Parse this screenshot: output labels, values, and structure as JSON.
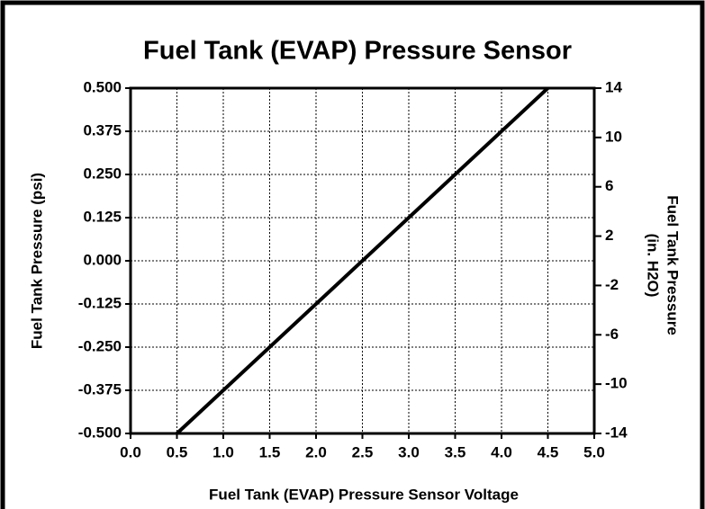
{
  "chart_data": {
    "type": "line",
    "title": "Fuel Tank (EVAP) Pressure Sensor",
    "xlabel": "Fuel Tank (EVAP) Pressure Sensor Voltage",
    "ylabel": "Fuel Tank Pressure (psi)",
    "y2label": [
      "Fuel Tank Pressure",
      "(in. H2O)"
    ],
    "series": [
      {
        "color": "#000000",
        "x": [
          0.5,
          4.5
        ],
        "values": [
          -0.5,
          0.5
        ]
      }
    ],
    "xlim": [
      0,
      5
    ],
    "xticks": [
      {
        "value": 0,
        "label": "0.0"
      },
      0.5,
      {
        "value": 1,
        "label": "1.0"
      },
      1.5,
      {
        "value": 2,
        "label": "2.0"
      },
      2.5,
      {
        "value": 3,
        "label": "3.0"
      },
      3.5,
      {
        "value": 4,
        "label": "4.0"
      },
      4.5,
      {
        "value": 5,
        "label": "5.0"
      }
    ],
    "ylim": [
      -0.5,
      0.5
    ],
    "yticks": [
      {
        "value": 0.5,
        "label": "0.500"
      },
      0.375,
      {
        "value": 0.25,
        "label": "0.250"
      },
      0.125,
      {
        "value": 0,
        "label": "0.000"
      },
      -0.125,
      {
        "value": -0.25,
        "label": "-0.250"
      },
      -0.375,
      {
        "value": -0.5,
        "label": "-0.500"
      }
    ],
    "y2lim": [
      -14,
      14
    ],
    "y2ticks": [
      14,
      10,
      6,
      2,
      -2,
      -6,
      -10,
      -14
    ],
    "grid": true
  }
}
